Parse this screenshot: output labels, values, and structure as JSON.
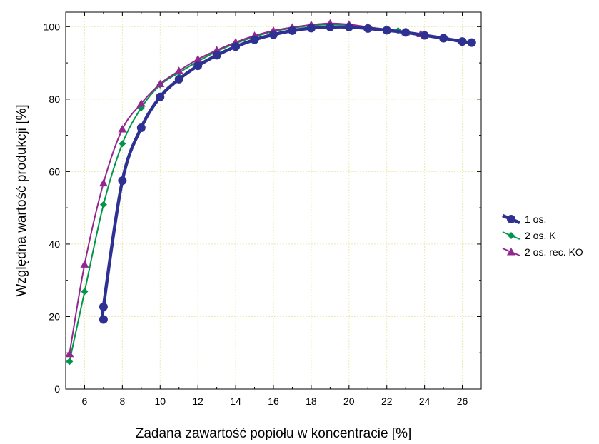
{
  "chart_data": {
    "type": "line",
    "title": "",
    "xlabel": "Zadana zawartość popiołu w koncentracie [%]",
    "ylabel": "Względna wartość produkcji [%]",
    "xlim": [
      5,
      27
    ],
    "ylim": [
      0,
      104
    ],
    "xticks": [
      6,
      8,
      10,
      12,
      14,
      16,
      18,
      20,
      22,
      24,
      26
    ],
    "yticks": [
      0,
      20,
      40,
      60,
      80,
      100
    ],
    "grid": true,
    "legend_position": "right",
    "series": [
      {
        "name": "1 os.",
        "color": "#2e3192",
        "marker": "circle",
        "x": [
          7,
          7,
          8,
          9,
          10,
          11,
          12,
          13,
          14,
          15,
          16,
          17,
          18,
          19,
          20,
          21,
          22,
          23,
          24,
          25,
          26,
          26.5
        ],
        "y": [
          19.2,
          22.7,
          57.5,
          72.1,
          80.6,
          85.5,
          89.2,
          92.1,
          94.5,
          96.4,
          97.8,
          98.9,
          99.6,
          99.9,
          99.9,
          99.5,
          99.0,
          98.4,
          97.6,
          96.8,
          95.9,
          95.6
        ]
      },
      {
        "name": "2 os. K",
        "color": "#00964b",
        "marker": "diamond",
        "x": [
          5.2,
          6,
          7,
          8,
          9,
          10,
          11,
          12,
          13,
          14,
          15,
          16,
          17,
          18,
          19,
          20,
          21,
          22,
          22.6
        ],
        "y": [
          7.6,
          26.9,
          50.9,
          67.7,
          77.6,
          83.9,
          87.3,
          90.4,
          93.2,
          95.4,
          97.2,
          98.7,
          99.6,
          100.3,
          100.6,
          100.5,
          99.8,
          99.3,
          98.9
        ]
      },
      {
        "name": "2 os. rec. KO",
        "color": "#92278f",
        "marker": "triangle",
        "x": [
          5.2,
          6,
          7,
          8,
          9,
          10,
          11,
          12,
          13,
          14,
          15,
          16,
          17,
          18,
          19,
          20,
          21,
          22,
          23,
          23.8
        ],
        "y": [
          9.7,
          34.4,
          56.8,
          71.7,
          78.8,
          84.2,
          87.8,
          91.0,
          93.5,
          95.7,
          97.5,
          98.9,
          99.8,
          100.5,
          100.9,
          100.6,
          99.9,
          99.2,
          98.5,
          98.0
        ]
      }
    ]
  }
}
